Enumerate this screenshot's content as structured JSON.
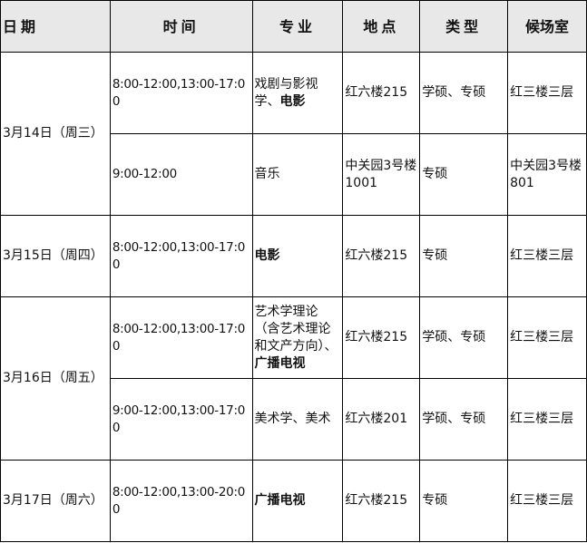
{
  "headers": [
    "日期",
    "时间",
    "专业",
    "地点",
    "类型",
    "候场室"
  ],
  "rows": [
    {
      "date": "3月14日（周三）",
      "time": "8:00-12:00,13:00-17:00",
      "major_plain": "戏剧与影视学、",
      "major_bold": "电影",
      "location": "红六楼215",
      "type": "学硕、专硕",
      "waiting_room": "红三楼三层"
    },
    {
      "time": "9:00-12:00",
      "major_plain": "音乐",
      "major_bold": "",
      "location": "中关园3号楼1001",
      "type": "专硕",
      "waiting_room": "中关园3号楼801"
    },
    {
      "date": "3月15日（周四）",
      "time": "8:00-12:00,13:00-17:00",
      "major_plain": "",
      "major_bold": "电影",
      "location": "红六楼215",
      "type": "专硕",
      "waiting_room": "红三楼三层"
    },
    {
      "date": "3月16日（周五）",
      "time": "8:00-12:00,13:00-17:00",
      "major_plain": "艺术学理论（含艺术理论和文产方向）、",
      "major_bold": "广播电视",
      "location": "红六楼215",
      "type": "学硕、专硕",
      "waiting_room": "红三楼三层"
    },
    {
      "time": "9:00-12:00,13:00-17:00",
      "major_plain": "美术学、美术",
      "major_bold": "",
      "location": "红六楼201",
      "type": "学硕、专硕",
      "waiting_room": "红三楼三层"
    },
    {
      "date": "3月17日（周六）",
      "time": "8:00-12:00,13:00-20:00",
      "major_plain": "",
      "major_bold": "广播电视",
      "location": "红六楼215",
      "type": "专硕",
      "waiting_room": "红三楼三层"
    }
  ]
}
